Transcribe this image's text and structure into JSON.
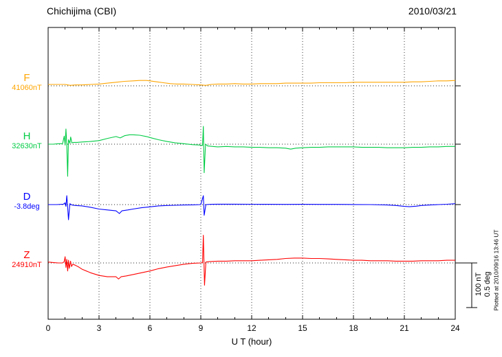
{
  "header": {
    "station": "Chichijima (CBI)",
    "date": "2010/03/21"
  },
  "footer": {
    "plotted_at": "Plotted at 2010/09/16 13:46 UT"
  },
  "scale_bar": {
    "labels": [
      "100 nT",
      "0.5 deg"
    ]
  },
  "colors": {
    "axis": "#000000",
    "grid": "#333333"
  },
  "chart_data": {
    "type": "line",
    "xlabel": "U T (hour)",
    "x_unit": "hour",
    "x_range": [
      0,
      24
    ],
    "x_ticks": [
      0,
      3,
      6,
      9,
      12,
      15,
      18,
      21,
      24
    ],
    "grid": "vertical-dotted-every-3h-plus-dotted-baselines",
    "scale_reference": {
      "length_nT": 100,
      "length_deg": 0.5
    },
    "series": [
      {
        "name": "F",
        "baseline_label": "41060nT",
        "baseline_value": 41060,
        "unit": "nT",
        "color": "#ffa500",
        "points": [
          [
            0,
            3
          ],
          [
            0.5,
            3
          ],
          [
            1,
            3
          ],
          [
            1.3,
            1
          ],
          [
            1.6,
            2
          ],
          [
            2,
            2
          ],
          [
            2.5,
            3
          ],
          [
            3,
            4
          ],
          [
            3.5,
            6
          ],
          [
            4,
            8
          ],
          [
            4.5,
            10
          ],
          [
            5,
            11
          ],
          [
            5.4,
            12
          ],
          [
            5.8,
            12
          ],
          [
            6,
            11
          ],
          [
            6.4,
            9
          ],
          [
            6.8,
            7
          ],
          [
            7.2,
            5
          ],
          [
            7.6,
            4
          ],
          [
            8,
            4
          ],
          [
            8.5,
            3
          ],
          [
            9,
            2
          ],
          [
            9.3,
            1
          ],
          [
            9.6,
            3
          ],
          [
            10,
            4
          ],
          [
            10.5,
            4
          ],
          [
            11,
            5
          ],
          [
            11.5,
            4
          ],
          [
            12,
            4
          ],
          [
            12.5,
            5
          ],
          [
            13,
            5
          ],
          [
            13.5,
            5
          ],
          [
            14,
            6
          ],
          [
            14.5,
            6
          ],
          [
            15,
            6
          ],
          [
            15.5,
            6
          ],
          [
            16,
            7
          ],
          [
            16.5,
            7
          ],
          [
            17,
            7
          ],
          [
            17.5,
            7
          ],
          [
            18,
            8
          ],
          [
            18.5,
            8
          ],
          [
            19,
            8
          ],
          [
            19.5,
            8
          ],
          [
            20,
            8
          ],
          [
            20.5,
            8
          ],
          [
            21,
            8
          ],
          [
            21.5,
            9
          ],
          [
            22,
            9
          ],
          [
            22.5,
            10
          ],
          [
            23,
            11
          ],
          [
            23.5,
            11
          ],
          [
            24,
            12
          ]
        ]
      },
      {
        "name": "H",
        "baseline_label": "32630nT",
        "baseline_value": 32630,
        "unit": "nT",
        "color": "#00cc44",
        "points": [
          [
            0,
            0
          ],
          [
            0.3,
            0
          ],
          [
            0.6,
            1
          ],
          [
            0.85,
            1
          ],
          [
            0.95,
            18
          ],
          [
            1.0,
            -2
          ],
          [
            1.05,
            34
          ],
          [
            1.1,
            0
          ],
          [
            1.15,
            -72
          ],
          [
            1.2,
            10
          ],
          [
            1.28,
            2
          ],
          [
            1.33,
            16
          ],
          [
            1.4,
            3
          ],
          [
            1.5,
            4
          ],
          [
            1.7,
            4
          ],
          [
            2,
            5
          ],
          [
            2.5,
            6
          ],
          [
            3,
            8
          ],
          [
            3.5,
            13
          ],
          [
            4,
            17
          ],
          [
            4.25,
            14
          ],
          [
            4.5,
            19
          ],
          [
            4.8,
            21
          ],
          [
            5,
            21
          ],
          [
            5.4,
            20
          ],
          [
            5.8,
            17
          ],
          [
            6,
            15
          ],
          [
            6.5,
            10
          ],
          [
            7,
            6
          ],
          [
            7.5,
            3
          ],
          [
            8,
            1
          ],
          [
            8.5,
            -1
          ],
          [
            9,
            -2
          ],
          [
            9.1,
            -3
          ],
          [
            9.15,
            40
          ],
          [
            9.2,
            -64
          ],
          [
            9.28,
            0
          ],
          [
            9.4,
            -4
          ],
          [
            9.7,
            -5
          ],
          [
            10,
            -6
          ],
          [
            10.5,
            -5
          ],
          [
            11,
            -6
          ],
          [
            11.5,
            -6
          ],
          [
            12,
            -7
          ],
          [
            12.5,
            -7
          ],
          [
            13,
            -8
          ],
          [
            13.5,
            -8
          ],
          [
            14,
            -9
          ],
          [
            14.3,
            -11
          ],
          [
            14.6,
            -9
          ],
          [
            15,
            -8
          ],
          [
            15.5,
            -7
          ],
          [
            16,
            -7
          ],
          [
            16.5,
            -6
          ],
          [
            17,
            -6
          ],
          [
            17.5,
            -6
          ],
          [
            18,
            -6
          ],
          [
            18.5,
            -7
          ],
          [
            19,
            -7
          ],
          [
            19.5,
            -7
          ],
          [
            20,
            -8
          ],
          [
            20.5,
            -8
          ],
          [
            21,
            -8
          ],
          [
            21.5,
            -7
          ],
          [
            22,
            -7
          ],
          [
            22.5,
            -6
          ],
          [
            23,
            -6
          ],
          [
            23.5,
            -5
          ],
          [
            24,
            -5
          ]
        ]
      },
      {
        "name": "D",
        "baseline_label": "-3.8deg",
        "baseline_value": -3.8,
        "unit": "deg",
        "color": "#0000ff",
        "points": [
          [
            0,
            0
          ],
          [
            0.5,
            0
          ],
          [
            0.9,
            0.005
          ],
          [
            1.0,
            0.02
          ],
          [
            1.05,
            -0.02
          ],
          [
            1.1,
            0.1
          ],
          [
            1.15,
            -0.03
          ],
          [
            1.2,
            -0.17
          ],
          [
            1.28,
            0.01
          ],
          [
            1.4,
            -0.005
          ],
          [
            1.6,
            -0.01
          ],
          [
            2,
            -0.015
          ],
          [
            2.5,
            -0.03
          ],
          [
            3,
            -0.05
          ],
          [
            3.5,
            -0.06
          ],
          [
            4,
            -0.07
          ],
          [
            4.2,
            -0.1
          ],
          [
            4.35,
            -0.07
          ],
          [
            4.7,
            -0.06
          ],
          [
            5,
            -0.05
          ],
          [
            5.5,
            -0.035
          ],
          [
            6,
            -0.025
          ],
          [
            6.5,
            -0.015
          ],
          [
            7,
            -0.01
          ],
          [
            7.5,
            -0.008
          ],
          [
            8,
            -0.005
          ],
          [
            8.5,
            -0.003
          ],
          [
            9,
            0
          ],
          [
            9.15,
            0.1
          ],
          [
            9.2,
            -0.12
          ],
          [
            9.3,
            0
          ],
          [
            9.6,
            0.003
          ],
          [
            10,
            0.005
          ],
          [
            11,
            0.005
          ],
          [
            12,
            0.004
          ],
          [
            13,
            0.003
          ],
          [
            14,
            0.002
          ],
          [
            15,
            0.003
          ],
          [
            16,
            0.002
          ],
          [
            17,
            0.002
          ],
          [
            18,
            0.001
          ],
          [
            19,
            0
          ],
          [
            20,
            -0.005
          ],
          [
            20.5,
            -0.01
          ],
          [
            21,
            -0.02
          ],
          [
            21.3,
            -0.024
          ],
          [
            21.7,
            -0.018
          ],
          [
            22,
            -0.01
          ],
          [
            22.5,
            -0.005
          ],
          [
            23,
            0
          ],
          [
            23.5,
            0.004
          ],
          [
            24,
            0.01
          ]
        ]
      },
      {
        "name": "Z",
        "baseline_label": "24910nT",
        "baseline_value": 24910,
        "unit": "nT",
        "color": "#ff0000",
        "points": [
          [
            0,
            2
          ],
          [
            0.3,
            1
          ],
          [
            0.6,
            0
          ],
          [
            0.85,
            0
          ],
          [
            0.95,
            3
          ],
          [
            1.0,
            14
          ],
          [
            1.05,
            -10
          ],
          [
            1.1,
            8
          ],
          [
            1.15,
            -18
          ],
          [
            1.2,
            6
          ],
          [
            1.25,
            -12
          ],
          [
            1.32,
            4
          ],
          [
            1.38,
            -8
          ],
          [
            1.45,
            -3
          ],
          [
            1.6,
            -5
          ],
          [
            1.8,
            -9
          ],
          [
            2,
            -14
          ],
          [
            2.5,
            -22
          ],
          [
            3,
            -28
          ],
          [
            3.5,
            -31
          ],
          [
            3.8,
            -31
          ],
          [
            4,
            -31
          ],
          [
            4.15,
            -36
          ],
          [
            4.3,
            -31
          ],
          [
            4.6,
            -29
          ],
          [
            5,
            -26
          ],
          [
            5.5,
            -22
          ],
          [
            6,
            -18
          ],
          [
            6.5,
            -13
          ],
          [
            7,
            -9
          ],
          [
            7.5,
            -6
          ],
          [
            8,
            -3
          ],
          [
            8.5,
            -1
          ],
          [
            9,
            0
          ],
          [
            9.1,
            1
          ],
          [
            9.15,
            62
          ],
          [
            9.22,
            -50
          ],
          [
            9.3,
            2
          ],
          [
            9.5,
            3
          ],
          [
            10,
            4
          ],
          [
            10.5,
            4
          ],
          [
            11,
            5
          ],
          [
            11.5,
            5
          ],
          [
            12,
            5
          ],
          [
            12.5,
            6
          ],
          [
            13,
            7
          ],
          [
            13.5,
            8
          ],
          [
            14,
            10
          ],
          [
            14.5,
            11
          ],
          [
            15,
            11
          ],
          [
            15.5,
            10
          ],
          [
            16,
            10
          ],
          [
            16.5,
            9
          ],
          [
            17,
            8
          ],
          [
            17.5,
            7
          ],
          [
            18,
            6
          ],
          [
            18.5,
            6
          ],
          [
            19,
            5
          ],
          [
            19.5,
            5
          ],
          [
            20,
            5
          ],
          [
            20.5,
            4
          ],
          [
            21,
            4
          ],
          [
            21.5,
            4
          ],
          [
            22,
            5
          ],
          [
            22.5,
            5
          ],
          [
            23,
            5
          ],
          [
            23.5,
            6
          ],
          [
            24,
            6
          ]
        ]
      }
    ]
  }
}
